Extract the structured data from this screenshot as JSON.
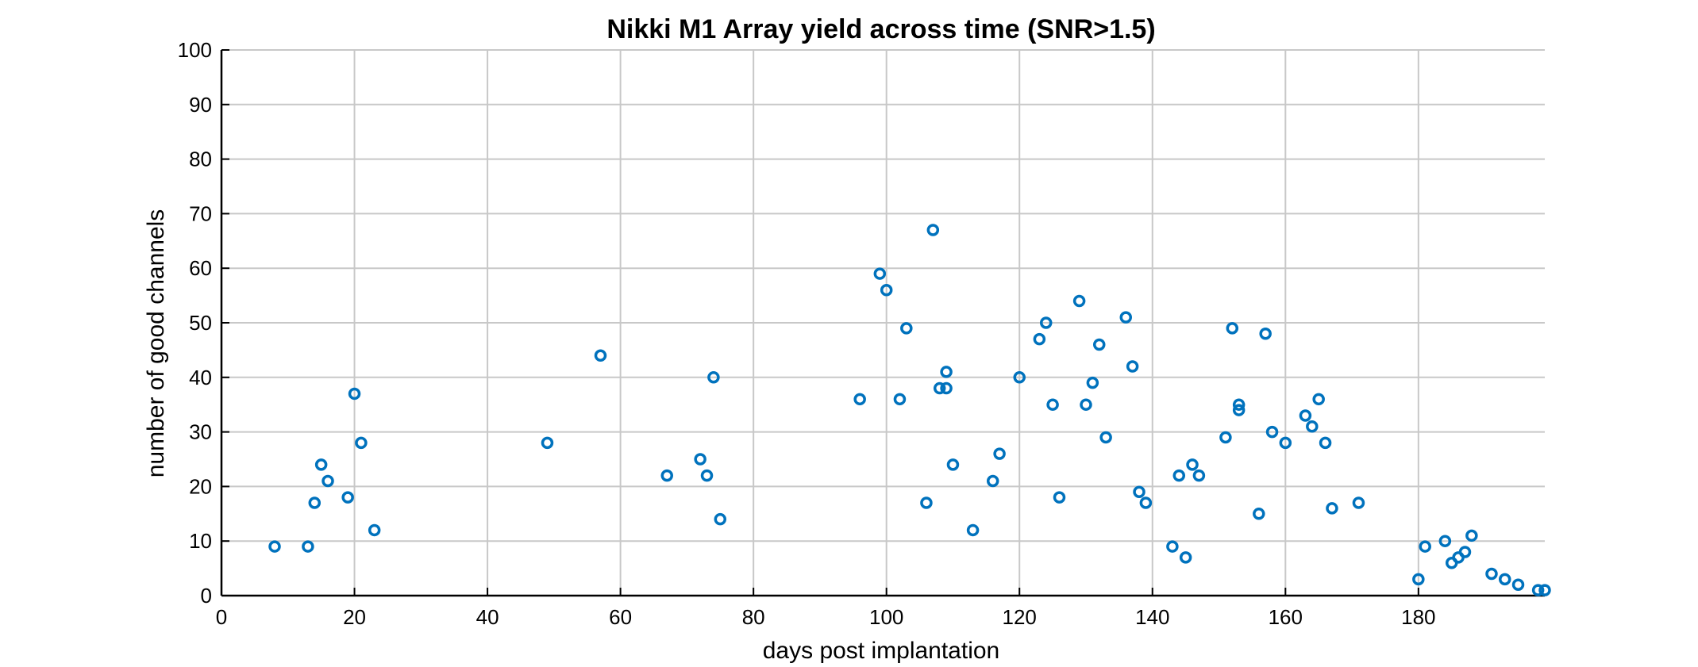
{
  "chart_data": {
    "type": "scatter",
    "title": "Nikki M1 Array yield across time (SNR>1.5)",
    "xlabel": "days post implantation",
    "ylabel": "number of good channels",
    "xlim": [
      0,
      199
    ],
    "ylim": [
      0,
      100
    ],
    "xticks": [
      0,
      20,
      40,
      60,
      80,
      100,
      120,
      140,
      160,
      180
    ],
    "yticks": [
      0,
      10,
      20,
      30,
      40,
      50,
      60,
      70,
      80,
      90,
      100
    ],
    "grid": true,
    "legend": false,
    "marker": "circle-open",
    "colors": {
      "marker": "#0072BD",
      "grid": "#c8c8c8",
      "axis": "#000000"
    },
    "x": [
      8,
      13,
      14,
      15,
      16,
      19,
      20,
      21,
      23,
      49,
      57,
      67,
      72,
      73,
      74,
      75,
      96,
      99,
      100,
      102,
      103,
      106,
      107,
      108,
      109,
      109,
      110,
      113,
      116,
      117,
      120,
      123,
      124,
      125,
      126,
      129,
      130,
      131,
      132,
      133,
      136,
      137,
      138,
      139,
      143,
      144,
      145,
      146,
      147,
      151,
      152,
      153,
      153,
      156,
      157,
      158,
      160,
      163,
      164,
      165,
      166,
      167,
      171,
      180,
      181,
      184,
      185,
      186,
      187,
      188,
      191,
      193,
      195,
      198,
      199
    ],
    "y": [
      9,
      9,
      17,
      24,
      21,
      18,
      37,
      28,
      12,
      28,
      44,
      22,
      25,
      22,
      40,
      14,
      36,
      59,
      56,
      36,
      49,
      17,
      67,
      38,
      38,
      41,
      24,
      12,
      21,
      26,
      40,
      47,
      50,
      35,
      18,
      54,
      35,
      39,
      46,
      29,
      51,
      42,
      19,
      17,
      9,
      22,
      7,
      24,
      22,
      29,
      49,
      35,
      34,
      15,
      48,
      30,
      28,
      33,
      31,
      36,
      28,
      16,
      17,
      3,
      9,
      10,
      6,
      7,
      8,
      11,
      4,
      3,
      2,
      1,
      1
    ]
  }
}
